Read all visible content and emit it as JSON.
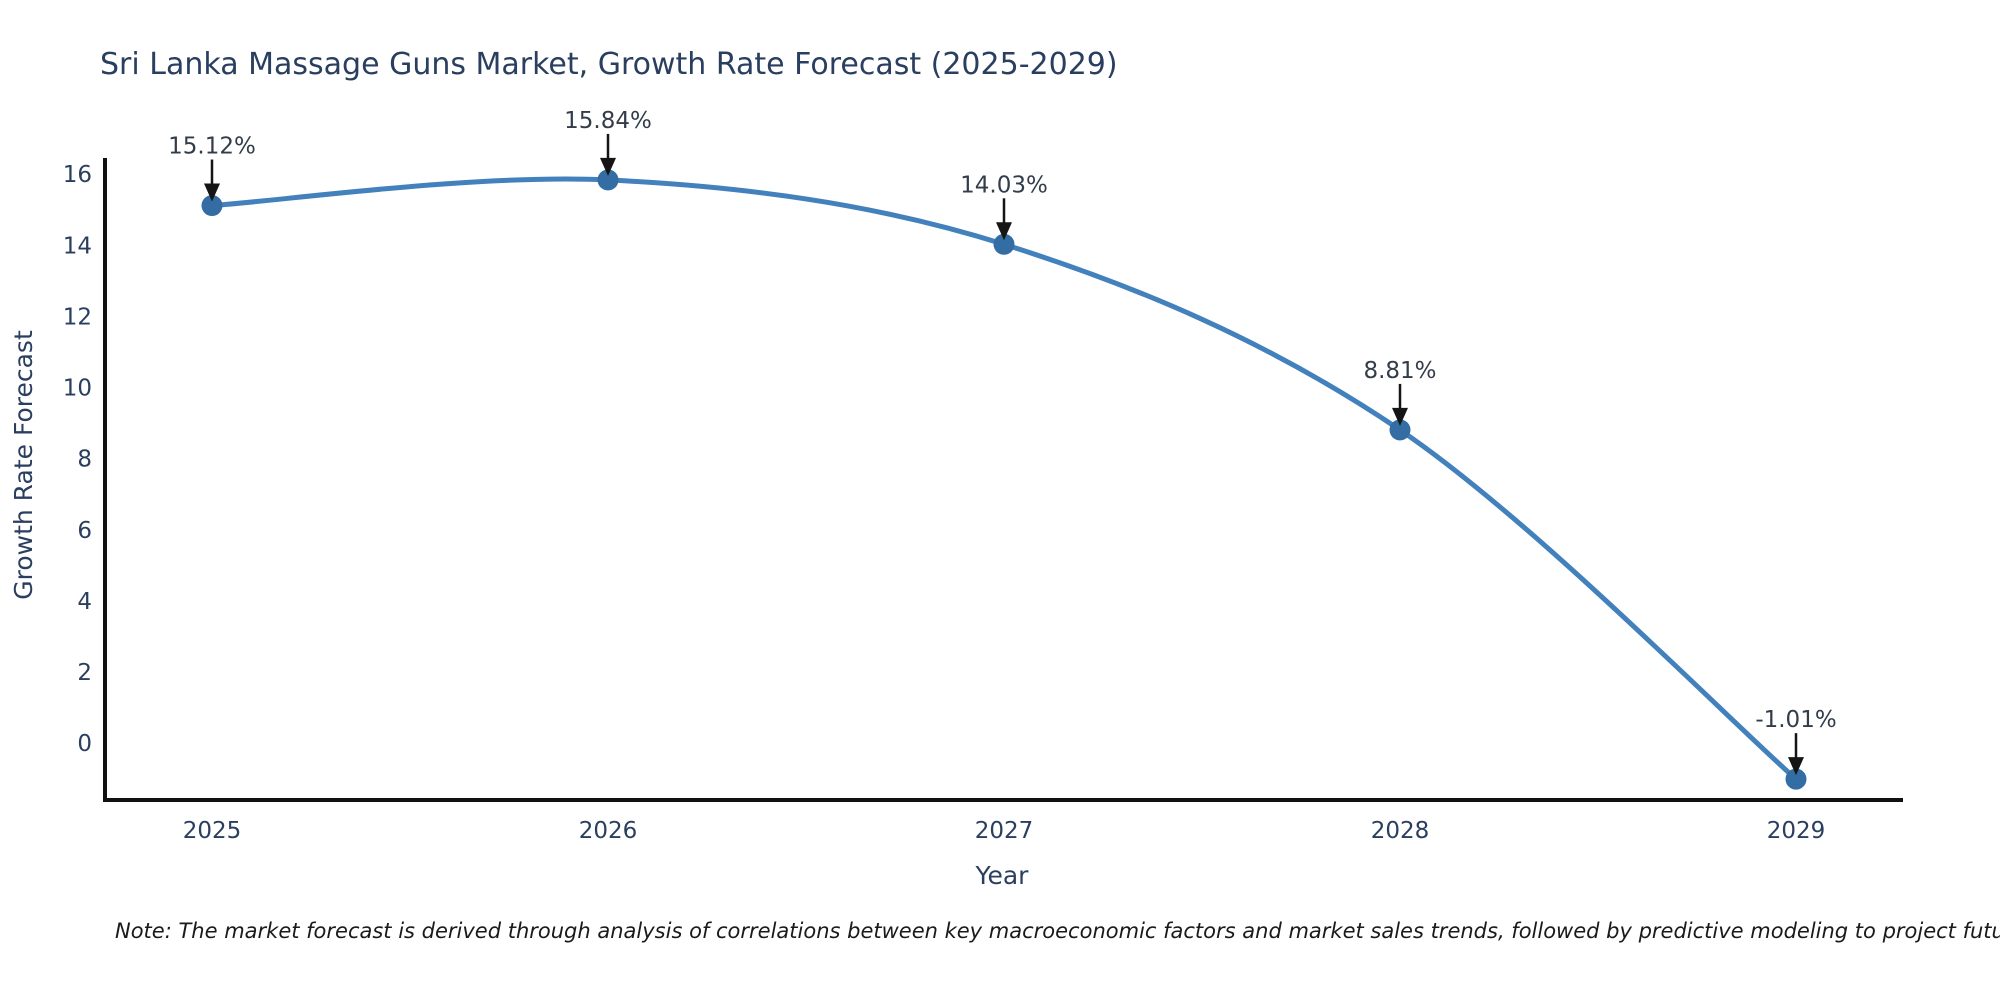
{
  "page": {
    "background": "#ffffff"
  },
  "chart_data": {
    "type": "line",
    "line_shape": "spline",
    "title": "Sri Lanka Massage Guns Market, Growth Rate Forecast (2025-2029)",
    "xlabel": "Year",
    "ylabel": "Growth Rate Forecast",
    "x": [
      2025,
      2026,
      2027,
      2028,
      2029
    ],
    "values": [
      15.12,
      15.84,
      14.03,
      8.81,
      -1.01
    ],
    "point_labels": [
      "15.12%",
      "15.84%",
      "14.03%",
      "8.81%",
      "-1.01%"
    ],
    "yticks": [
      0,
      2,
      4,
      6,
      8,
      10,
      12,
      14,
      16
    ],
    "ylim": [
      -1.6,
      16.5
    ],
    "grid": false,
    "legend": "none",
    "annotations_style": "down-arrow-to-point",
    "note": "Note: The market forecast is derived through analysis of correlations between key macroeconomic factors and market sales trends, followed by predictive modeling to project future sales",
    "colors": {
      "line": "#4381bd",
      "marker": "#336da4",
      "axis": "#111111",
      "text": "#2a3f5f",
      "annotation_text": "#333d4a",
      "arrow": "#151515",
      "note_text": "#1a1a1a",
      "background": "#ffffff"
    }
  }
}
